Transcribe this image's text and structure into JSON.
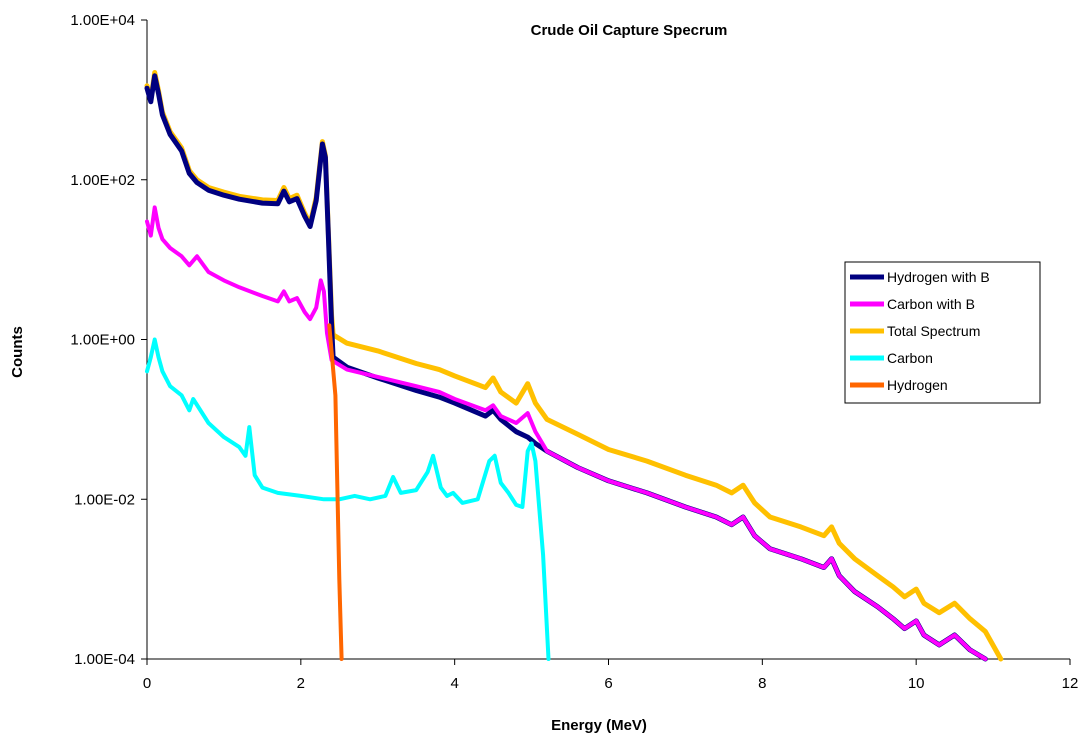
{
  "chart_data": {
    "type": "line",
    "title": "Crude Oil Capture Specrum",
    "xlabel": "Energy (MeV)",
    "ylabel": "Counts",
    "xlim": [
      0,
      12
    ],
    "ylim": [
      0.0001,
      10000
    ],
    "yscale": "log",
    "grid": false,
    "legend_position": "right",
    "x_ticks": [
      0,
      2,
      4,
      6,
      8,
      10,
      12
    ],
    "x_tick_labels": [
      "0",
      "2",
      "4",
      "6",
      "8",
      "10",
      "12"
    ],
    "y_ticks": [
      0.0001,
      0.01,
      1,
      100,
      10000
    ],
    "y_tick_labels": [
      "1.00E-04",
      "1.00E-02",
      "1.00E+00",
      "1.00E+02",
      "1.00E+04"
    ],
    "series": [
      {
        "name": "Total Spectrum",
        "color": "#FFC000",
        "x": [
          0,
          0.05,
          0.1,
          0.15,
          0.2,
          0.3,
          0.45,
          0.55,
          0.65,
          0.8,
          1.0,
          1.2,
          1.5,
          1.7,
          1.78,
          1.85,
          1.95,
          2.05,
          2.12,
          2.2,
          2.28,
          2.32,
          2.36,
          2.4,
          2.42,
          2.6,
          3.0,
          3.5,
          3.8,
          4.0,
          4.4,
          4.5,
          4.6,
          4.8,
          4.95,
          5.05,
          5.2,
          5.6,
          6.0,
          6.5,
          7.0,
          7.4,
          7.6,
          7.75,
          7.9,
          8.1,
          8.5,
          8.8,
          8.9,
          9.0,
          9.2,
          9.5,
          9.7,
          9.85,
          10.0,
          10.1,
          10.3,
          10.5,
          10.7,
          10.9,
          11.1
        ],
        "y": [
          1500,
          1000,
          2200,
          1300,
          700,
          400,
          250,
          130,
          100,
          80,
          70,
          62,
          56,
          55,
          80,
          58,
          64,
          38,
          28,
          60,
          300,
          200,
          20,
          2.0,
          1.15,
          0.9,
          0.72,
          0.5,
          0.42,
          0.35,
          0.25,
          0.33,
          0.22,
          0.16,
          0.28,
          0.16,
          0.1,
          0.065,
          0.042,
          0.03,
          0.02,
          0.015,
          0.012,
          0.015,
          0.009,
          0.006,
          0.0045,
          0.0035,
          0.0045,
          0.0028,
          0.0018,
          0.0011,
          0.0008,
          0.0006,
          0.00075,
          0.0005,
          0.00038,
          0.0005,
          0.00032,
          0.00022,
          0.0001
        ]
      },
      {
        "name": "Hydrogen with B",
        "color": "#000080",
        "x": [
          0,
          0.05,
          0.1,
          0.15,
          0.2,
          0.3,
          0.45,
          0.55,
          0.65,
          0.8,
          1.0,
          1.2,
          1.5,
          1.7,
          1.78,
          1.85,
          1.95,
          2.05,
          2.12,
          2.2,
          2.28,
          2.32,
          2.36,
          2.4,
          2.42,
          2.6,
          3.0,
          3.5,
          3.8,
          4.0,
          4.4,
          4.5,
          4.6,
          4.8,
          4.95,
          5.05,
          5.2,
          5.6,
          6.0,
          6.5,
          7.0,
          7.4,
          7.6,
          7.75,
          7.9,
          8.1,
          8.5,
          8.8,
          8.9,
          9.0,
          9.2,
          9.5,
          9.7,
          9.85,
          10.0,
          10.1,
          10.3,
          10.5,
          10.7,
          10.9
        ],
        "y": [
          1400,
          950,
          2000,
          1200,
          650,
          370,
          230,
          120,
          92,
          74,
          64,
          57,
          51,
          50,
          72,
          53,
          58,
          35,
          26,
          55,
          280,
          190,
          18,
          1.5,
          0.6,
          0.45,
          0.33,
          0.23,
          0.19,
          0.16,
          0.11,
          0.13,
          0.1,
          0.07,
          0.06,
          0.05,
          0.04,
          0.025,
          0.017,
          0.012,
          0.008,
          0.006,
          0.0048,
          0.006,
          0.0035,
          0.0024,
          0.0018,
          0.0014,
          0.0018,
          0.0011,
          0.0007,
          0.00045,
          0.00032,
          0.00024,
          0.0003,
          0.0002,
          0.00015,
          0.0002,
          0.00013,
          0.0001
        ]
      },
      {
        "name": "Carbon with B",
        "color": "#FF00FF",
        "x": [
          0,
          0.05,
          0.1,
          0.15,
          0.2,
          0.3,
          0.45,
          0.55,
          0.65,
          0.8,
          1.0,
          1.2,
          1.5,
          1.7,
          1.78,
          1.85,
          1.95,
          2.05,
          2.12,
          2.2,
          2.26,
          2.3,
          2.34,
          2.4,
          2.6,
          3.0,
          3.5,
          3.8,
          4.0,
          4.4,
          4.5,
          4.6,
          4.8,
          4.95,
          5.05,
          5.2,
          5.6,
          6.0,
          6.5,
          7.0,
          7.4,
          7.6,
          7.75,
          7.9,
          8.1,
          8.5,
          8.8,
          8.9,
          9.0,
          9.2,
          9.5,
          9.7,
          9.85,
          10.0,
          10.1,
          10.3,
          10.5,
          10.7,
          10.9
        ],
        "y": [
          30,
          20,
          45,
          25,
          18,
          14,
          11,
          8.5,
          11,
          7,
          5.5,
          4.5,
          3.5,
          3.0,
          4.0,
          3.0,
          3.3,
          2.2,
          1.8,
          2.5,
          5.5,
          4.0,
          1.2,
          0.55,
          0.42,
          0.34,
          0.26,
          0.22,
          0.18,
          0.13,
          0.15,
          0.11,
          0.09,
          0.12,
          0.07,
          0.04,
          0.025,
          0.017,
          0.012,
          0.008,
          0.006,
          0.0048,
          0.006,
          0.0035,
          0.0024,
          0.0018,
          0.0014,
          0.0018,
          0.0011,
          0.0007,
          0.00045,
          0.00032,
          0.00024,
          0.0003,
          0.0002,
          0.00015,
          0.0002,
          0.00013,
          0.0001
        ]
      },
      {
        "name": "Carbon",
        "color": "#00FFFF",
        "x": [
          0,
          0.05,
          0.1,
          0.15,
          0.2,
          0.3,
          0.45,
          0.55,
          0.6,
          0.8,
          1.0,
          1.2,
          1.28,
          1.33,
          1.4,
          1.5,
          1.7,
          2.0,
          2.3,
          2.5,
          2.7,
          2.9,
          3.1,
          3.2,
          3.3,
          3.5,
          3.65,
          3.72,
          3.82,
          3.9,
          3.98,
          4.1,
          4.3,
          4.45,
          4.52,
          4.6,
          4.7,
          4.8,
          4.88,
          4.95,
          5.0,
          5.05,
          5.15,
          5.22
        ],
        "y": [
          0.4,
          0.6,
          1.0,
          0.6,
          0.4,
          0.26,
          0.2,
          0.13,
          0.18,
          0.09,
          0.06,
          0.045,
          0.035,
          0.08,
          0.02,
          0.014,
          0.012,
          0.011,
          0.01,
          0.01,
          0.011,
          0.01,
          0.011,
          0.019,
          0.012,
          0.013,
          0.022,
          0.035,
          0.014,
          0.011,
          0.012,
          0.009,
          0.01,
          0.03,
          0.035,
          0.016,
          0.012,
          0.0085,
          0.008,
          0.04,
          0.05,
          0.03,
          0.002,
          0.0001
        ]
      },
      {
        "name": "Hydrogen",
        "color": "#FF6600",
        "x": [
          2.37,
          2.45,
          2.5,
          2.53
        ],
        "y": [
          1.5,
          0.2,
          0.001,
          0.0001
        ]
      }
    ]
  }
}
